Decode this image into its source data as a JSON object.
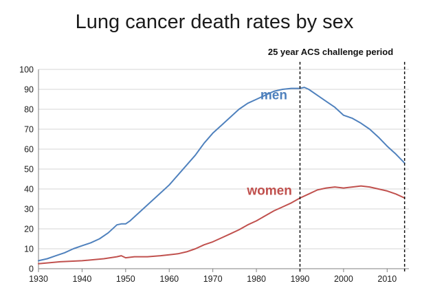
{
  "chart_data": {
    "type": "line",
    "title": "Lung cancer death rates by sex",
    "xlabel": "",
    "ylabel": "",
    "xlim": [
      1930,
      2015
    ],
    "ylim": [
      0,
      100
    ],
    "x_ticks": [
      1930,
      1940,
      1950,
      1960,
      1970,
      1980,
      1990,
      2000,
      2010
    ],
    "y_ticks": [
      0,
      10,
      20,
      30,
      40,
      50,
      60,
      70,
      80,
      90,
      100
    ],
    "grid": true,
    "legend": "none",
    "series": [
      {
        "name": "men",
        "color": "#4f81bd",
        "label_pos": [
          1984,
          85
        ],
        "x": [
          1930,
          1932,
          1934,
          1936,
          1938,
          1940,
          1942,
          1944,
          1946,
          1948,
          1949,
          1950,
          1951,
          1952,
          1954,
          1956,
          1958,
          1960,
          1962,
          1964,
          1966,
          1967,
          1968,
          1970,
          1972,
          1974,
          1976,
          1978,
          1980,
          1982,
          1984,
          1986,
          1988,
          1990,
          1991,
          1992,
          1994,
          1996,
          1998,
          2000,
          2002,
          2004,
          2006,
          2008,
          2010,
          2012,
          2014
        ],
        "y": [
          4,
          5,
          6.5,
          8,
          10,
          11.5,
          13,
          15,
          18,
          22,
          22.5,
          22.5,
          24,
          26,
          30,
          34,
          38,
          42,
          47,
          52,
          57,
          60,
          63,
          68,
          72,
          76,
          80,
          83,
          85,
          87,
          89,
          90,
          90.5,
          90.5,
          91,
          90,
          87,
          84,
          81,
          77,
          75.5,
          73,
          70,
          66,
          61.5,
          57.5,
          53
        ]
      },
      {
        "name": "women",
        "color": "#c0504d",
        "label_pos": [
          1983,
          37
        ],
        "x": [
          1930,
          1935,
          1940,
          1945,
          1948,
          1949,
          1950,
          1952,
          1955,
          1958,
          1960,
          1962,
          1964,
          1966,
          1968,
          1970,
          1972,
          1974,
          1976,
          1978,
          1980,
          1982,
          1984,
          1986,
          1988,
          1990,
          1992,
          1994,
          1996,
          1998,
          2000,
          2002,
          2004,
          2006,
          2008,
          2010,
          2012,
          2014
        ],
        "y": [
          2.5,
          3.5,
          4,
          5,
          6,
          6.5,
          5.5,
          6,
          6,
          6.5,
          7,
          7.5,
          8.5,
          10,
          12,
          13.5,
          15.5,
          17.5,
          19.5,
          22,
          24,
          26.5,
          29,
          31,
          33,
          35.5,
          37.5,
          39.5,
          40.5,
          41,
          40.5,
          41,
          41.5,
          41,
          40,
          39,
          37.5,
          35.5
        ]
      }
    ],
    "annotations": [
      {
        "text": "25 year ACS challenge period",
        "x_range": [
          1990,
          2014
        ],
        "style": "dashed vertical lines"
      }
    ]
  }
}
